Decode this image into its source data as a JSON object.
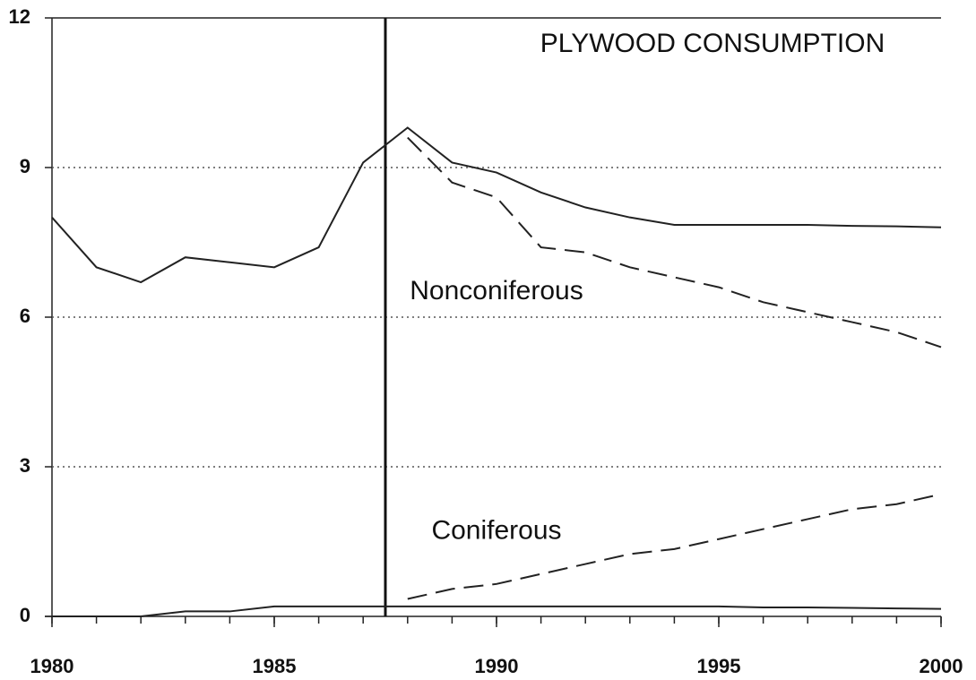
{
  "chart_data": {
    "type": "line",
    "title": "PLYWOOD CONSUMPTION",
    "annotations": [
      {
        "text": "Nonconiferous",
        "x": 1990,
        "y": 6.5
      },
      {
        "text": "Coniferous",
        "x": 1990,
        "y": 1.7
      }
    ],
    "vline": 1987.5,
    "series": [
      {
        "style": "solid",
        "color": "#222",
        "x": [
          1980,
          1981,
          1982,
          1983,
          1984,
          1985,
          1986,
          1987,
          1988,
          1989,
          1990,
          1991,
          1992,
          1993,
          1994,
          1995,
          1996,
          1997,
          1998,
          1999,
          2000
        ],
        "values": [
          8.0,
          7.0,
          6.7,
          7.2,
          7.1,
          7.0,
          7.4,
          9.1,
          9.8,
          9.1,
          8.9,
          8.5,
          8.2,
          8.0,
          7.85,
          7.85,
          7.85,
          7.85,
          7.83,
          7.82,
          7.8
        ]
      },
      {
        "style": "dashed",
        "color": "#222",
        "x": [
          1988,
          1989,
          1990,
          1991,
          1992,
          1993,
          1994,
          1995,
          1996,
          1997,
          1998,
          1999,
          2000
        ],
        "values": [
          9.6,
          8.7,
          8.4,
          7.4,
          7.3,
          7.0,
          6.8,
          6.6,
          6.3,
          6.1,
          5.9,
          5.7,
          5.4
        ]
      },
      {
        "style": "solid",
        "color": "#222",
        "x": [
          1980,
          1981,
          1982,
          1983,
          1984,
          1985,
          1986,
          1987,
          1988,
          1989,
          1990,
          1991,
          1992,
          1993,
          1994,
          1995,
          1996,
          1997,
          1998,
          1999,
          2000
        ],
        "values": [
          0,
          0,
          0,
          0.1,
          0.1,
          0.2,
          0.2,
          0.2,
          0.2,
          0.2,
          0.2,
          0.2,
          0.2,
          0.2,
          0.2,
          0.2,
          0.18,
          0.18,
          0.17,
          0.16,
          0.15
        ]
      },
      {
        "style": "dashed",
        "color": "#222",
        "x": [
          1988,
          1989,
          1990,
          1991,
          1992,
          1993,
          1994,
          1995,
          1996,
          1997,
          1998,
          1999,
          2000
        ],
        "values": [
          0.35,
          0.55,
          0.65,
          0.85,
          1.05,
          1.25,
          1.35,
          1.55,
          1.75,
          1.95,
          2.15,
          2.25,
          2.45
        ]
      }
    ],
    "xlim": [
      1980,
      2000
    ],
    "xticks": [
      1980,
      1985,
      1990,
      1995,
      2000
    ],
    "xminorticks": [
      1980,
      1981,
      1982,
      1983,
      1984,
      1985,
      1986,
      1987,
      1988,
      1989,
      1990,
      1991,
      1992,
      1993,
      1994,
      1995,
      1996,
      1997,
      1998,
      1999,
      2000
    ],
    "ylim": [
      0,
      12
    ],
    "yticks": [
      0,
      3,
      6,
      9,
      12
    ],
    "grid": true
  }
}
